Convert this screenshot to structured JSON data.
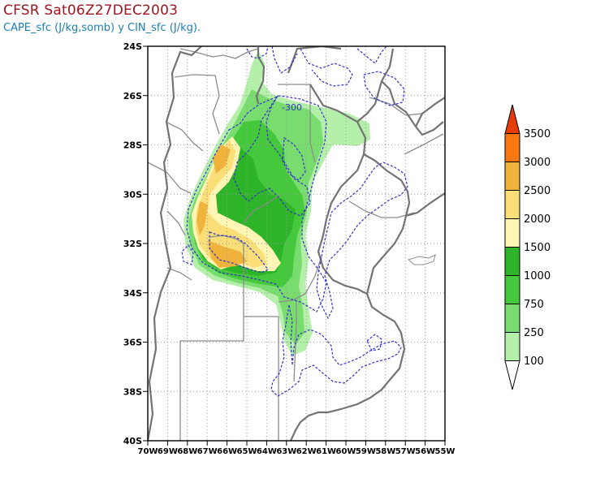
{
  "header": {
    "title": "CFSR Sat06Z27DEC2003",
    "subtitle": "CAPE_sfc (J/kg,somb) y CIN_sfc (J/kg)."
  },
  "axes": {
    "lat_labels": [
      "24S",
      "26S",
      "28S",
      "30S",
      "32S",
      "34S",
      "36S",
      "38S",
      "40S"
    ],
    "lon_labels": [
      "70W",
      "69W",
      "68W",
      "67W",
      "66W",
      "65W",
      "64W",
      "63W",
      "62W",
      "61W",
      "60W",
      "59W",
      "58W",
      "57W",
      "56W",
      "55W"
    ]
  },
  "contours": {
    "cin_label": "-300"
  },
  "colorbar": {
    "labels": [
      "100",
      "250",
      "750",
      "1000",
      "1500",
      "2000",
      "2500",
      "3000",
      "3500"
    ],
    "colors": [
      "#b4f0aa",
      "#78dc6e",
      "#46c83c",
      "#2eb428",
      "#fff5b4",
      "#fade78",
      "#f0b43c",
      "#fa7814",
      "#e63c0a",
      "#b41e00"
    ]
  },
  "style": {
    "title_color": "#a0141e",
    "subtitle_color": "#1c7fb0",
    "cin_contour_color": "#3232c8",
    "border_color": "#828282"
  }
}
